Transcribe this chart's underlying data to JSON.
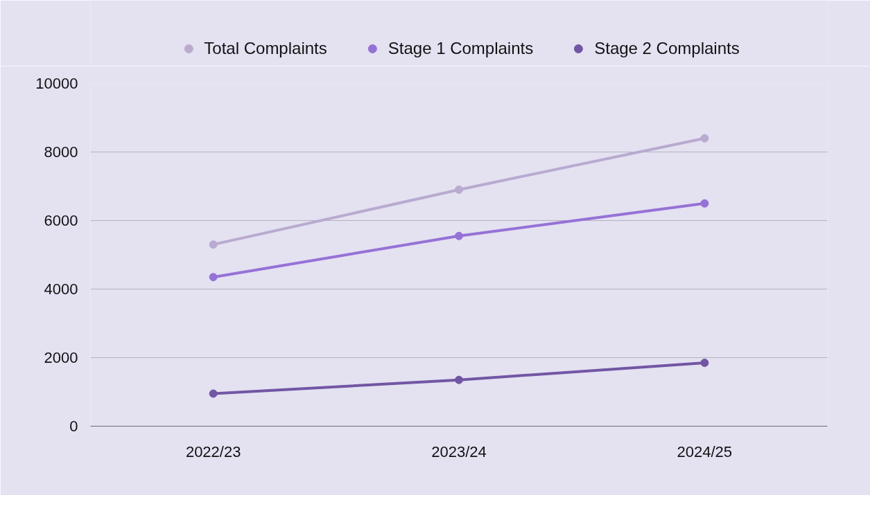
{
  "chart_data": {
    "type": "line",
    "categories": [
      "2022/23",
      "2023/24",
      "2024/25"
    ],
    "series": [
      {
        "name": "Total Complaints",
        "color": "#b9aad0",
        "values": [
          5300,
          6900,
          8400
        ]
      },
      {
        "name": "Stage 1 Complaints",
        "color": "#9572d6",
        "values": [
          4350,
          5550,
          6500
        ]
      },
      {
        "name": "Stage 2 Complaints",
        "color": "#7256a3",
        "values": [
          950,
          1350,
          1850
        ]
      }
    ],
    "ylim": [
      0,
      10000
    ],
    "yticks": [
      0,
      2000,
      4000,
      6000,
      8000,
      10000
    ],
    "grid": "y",
    "legend": "top",
    "marker": "circle",
    "line_style": "solid"
  }
}
